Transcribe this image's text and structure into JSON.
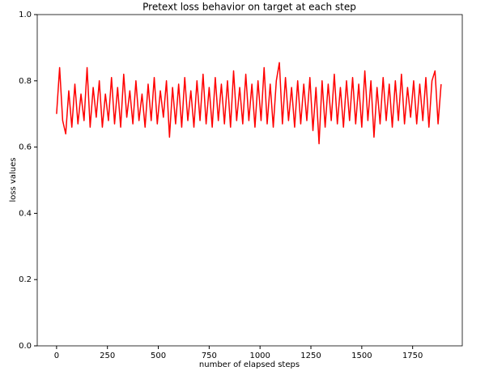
{
  "chart_data": {
    "type": "line",
    "title": "Pretext loss behavior on target at each step",
    "xlabel": "number of elapsed steps",
    "ylabel": "loss values",
    "color": "#ff0000",
    "x": [
      0,
      15,
      30,
      45,
      60,
      75,
      90,
      105,
      120,
      135,
      150,
      165,
      180,
      195,
      210,
      225,
      240,
      255,
      270,
      285,
      300,
      315,
      330,
      345,
      360,
      375,
      390,
      405,
      420,
      435,
      450,
      465,
      480,
      495,
      510,
      525,
      540,
      555,
      570,
      585,
      600,
      615,
      630,
      645,
      660,
      675,
      690,
      705,
      720,
      735,
      750,
      765,
      780,
      795,
      810,
      825,
      840,
      855,
      870,
      885,
      900,
      915,
      930,
      945,
      960,
      975,
      990,
      1005,
      1020,
      1035,
      1050,
      1065,
      1080,
      1095,
      1110,
      1125,
      1140,
      1155,
      1170,
      1185,
      1200,
      1215,
      1230,
      1245,
      1260,
      1275,
      1290,
      1305,
      1320,
      1335,
      1350,
      1365,
      1380,
      1395,
      1410,
      1425,
      1440,
      1455,
      1470,
      1485,
      1500,
      1515,
      1530,
      1545,
      1560,
      1575,
      1590,
      1605,
      1620,
      1635,
      1650,
      1665,
      1680,
      1695,
      1710,
      1725,
      1740,
      1755,
      1770,
      1785,
      1800,
      1815,
      1830,
      1845,
      1860,
      1875,
      1890
    ],
    "values": [
      0.7,
      0.84,
      0.68,
      0.64,
      0.77,
      0.66,
      0.79,
      0.67,
      0.76,
      0.68,
      0.84,
      0.66,
      0.78,
      0.69,
      0.8,
      0.66,
      0.76,
      0.68,
      0.81,
      0.67,
      0.78,
      0.66,
      0.82,
      0.69,
      0.77,
      0.67,
      0.8,
      0.68,
      0.76,
      0.66,
      0.79,
      0.68,
      0.81,
      0.67,
      0.77,
      0.69,
      0.8,
      0.63,
      0.78,
      0.67,
      0.79,
      0.66,
      0.81,
      0.68,
      0.77,
      0.66,
      0.8,
      0.68,
      0.82,
      0.67,
      0.78,
      0.66,
      0.81,
      0.68,
      0.79,
      0.67,
      0.8,
      0.66,
      0.83,
      0.68,
      0.78,
      0.67,
      0.82,
      0.68,
      0.79,
      0.66,
      0.8,
      0.68,
      0.84,
      0.67,
      0.79,
      0.66,
      0.8,
      0.855,
      0.67,
      0.81,
      0.68,
      0.78,
      0.66,
      0.8,
      0.67,
      0.79,
      0.68,
      0.81,
      0.65,
      0.78,
      0.61,
      0.8,
      0.66,
      0.79,
      0.68,
      0.82,
      0.67,
      0.78,
      0.66,
      0.8,
      0.68,
      0.81,
      0.67,
      0.79,
      0.66,
      0.83,
      0.68,
      0.8,
      0.63,
      0.78,
      0.67,
      0.81,
      0.68,
      0.79,
      0.66,
      0.8,
      0.68,
      0.82,
      0.67,
      0.78,
      0.69,
      0.8,
      0.67,
      0.79,
      0.68,
      0.81,
      0.66,
      0.8,
      0.83,
      0.67,
      0.79
    ],
    "xlim": [
      -95,
      1994
    ],
    "xticks": [
      0,
      250,
      500,
      750,
      1000,
      1250,
      1500,
      1750
    ],
    "ylim": [
      0,
      1
    ],
    "yticks": [
      {
        "value": 0,
        "label": "0.0"
      },
      0.2,
      0.4,
      0.6,
      0.8,
      {
        "value": 1,
        "label": "1.0"
      }
    ]
  }
}
